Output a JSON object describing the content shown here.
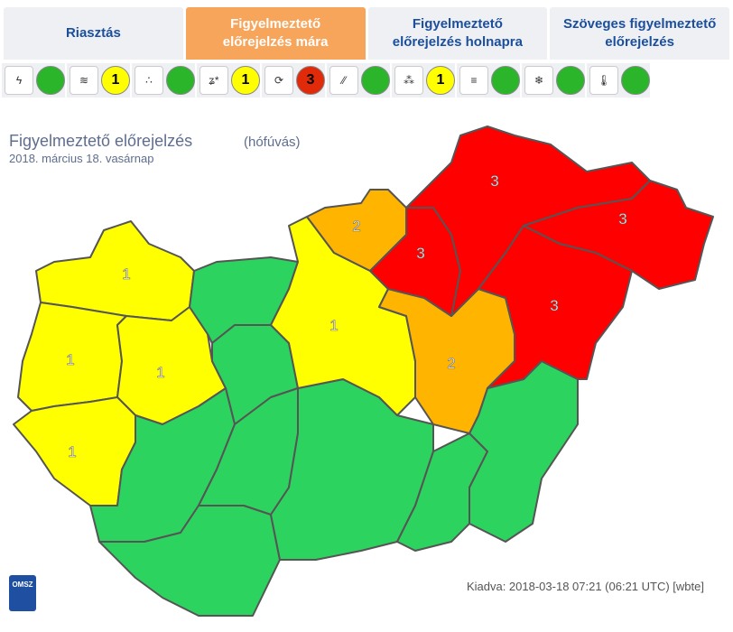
{
  "tabs": [
    "Riasztás",
    "Figyelmeztető előrejelzés mára",
    "Figyelmeztető előrejelzés holnapra",
    "Szöveges figyelmeztető előrejelzés"
  ],
  "active_tab": 1,
  "hazards": [
    {
      "color": "#2bb52b"
    },
    {
      "level": "1",
      "color": "#ffff00"
    },
    {
      "color": "#2bb52b"
    },
    {
      "level": "1",
      "color": "#ffff00"
    },
    {
      "level": "3",
      "color": "#e02a0a"
    },
    {
      "color": "#2bb52b"
    },
    {
      "level": "1",
      "color": "#ffff00"
    },
    {
      "color": "#2bb52b"
    },
    {
      "color": "#2bb52b"
    },
    {
      "color": "#2bb52b"
    }
  ],
  "map": {
    "title": "Figyelmeztető előrejelzés",
    "hazard": "(hófúvás)",
    "date": "2018. március 18. vasárnap",
    "regions": [
      {
        "label": "1",
        "color": "#ffff00"
      },
      {
        "label": "1",
        "color": "#ffff00"
      },
      {
        "label": "1",
        "color": "#ffff00"
      },
      {
        "label": "1",
        "color": "#ffff00"
      },
      {
        "color": "#2dd35f"
      },
      {
        "color": "#2dd35f"
      },
      {
        "color": "#2dd35f"
      },
      {
        "color": "#2dd35f"
      },
      {
        "color": "#2dd35f"
      },
      {
        "color": "#2dd35f"
      },
      {
        "color": "#2dd35f"
      },
      {
        "color": "#2dd35f"
      },
      {
        "label": "1",
        "color": "#ffff00"
      },
      {
        "label": "2",
        "color": "#ffb400"
      },
      {
        "label": "2",
        "color": "#ffb400"
      },
      {
        "label": "3",
        "color": "#ff0000"
      },
      {
        "label": "3",
        "color": "#ff0000"
      },
      {
        "label": "3",
        "color": "#ff0000"
      },
      {
        "label": "3",
        "color": "#ff0000"
      }
    ]
  },
  "footer": {
    "issued": "Kiadva: 2018-03-18 07:21 (06:21 UTC) [wbte]",
    "logo": "OMSZ"
  }
}
